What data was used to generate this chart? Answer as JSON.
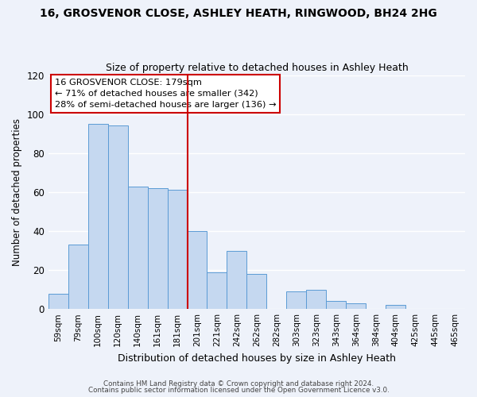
{
  "title": "16, GROSVENOR CLOSE, ASHLEY HEATH, RINGWOOD, BH24 2HG",
  "subtitle": "Size of property relative to detached houses in Ashley Heath",
  "xlabel": "Distribution of detached houses by size in Ashley Heath",
  "ylabel": "Number of detached properties",
  "bar_labels": [
    "59sqm",
    "79sqm",
    "100sqm",
    "120sqm",
    "140sqm",
    "161sqm",
    "181sqm",
    "201sqm",
    "221sqm",
    "242sqm",
    "262sqm",
    "282sqm",
    "303sqm",
    "323sqm",
    "343sqm",
    "364sqm",
    "384sqm",
    "404sqm",
    "425sqm",
    "445sqm",
    "465sqm"
  ],
  "bar_values": [
    8,
    33,
    95,
    94,
    63,
    62,
    61,
    40,
    19,
    30,
    18,
    0,
    9,
    10,
    4,
    3,
    0,
    2,
    0,
    0,
    0
  ],
  "bar_color": "#c5d8f0",
  "bar_edge_color": "#5b9bd5",
  "vline_x_index": 6,
  "vline_color": "#cc0000",
  "ylim": [
    0,
    120
  ],
  "yticks": [
    0,
    20,
    40,
    60,
    80,
    100,
    120
  ],
  "annotation_line1": "16 GROSVENOR CLOSE: 179sqm",
  "annotation_line2": "← 71% of detached houses are smaller (342)",
  "annotation_line3": "28% of semi-detached houses are larger (136) →",
  "footer1": "Contains HM Land Registry data © Crown copyright and database right 2024.",
  "footer2": "Contains public sector information licensed under the Open Government Licence v3.0.",
  "background_color": "#eef2fa",
  "plot_background": "#eef2fa",
  "grid_color": "#ffffff"
}
